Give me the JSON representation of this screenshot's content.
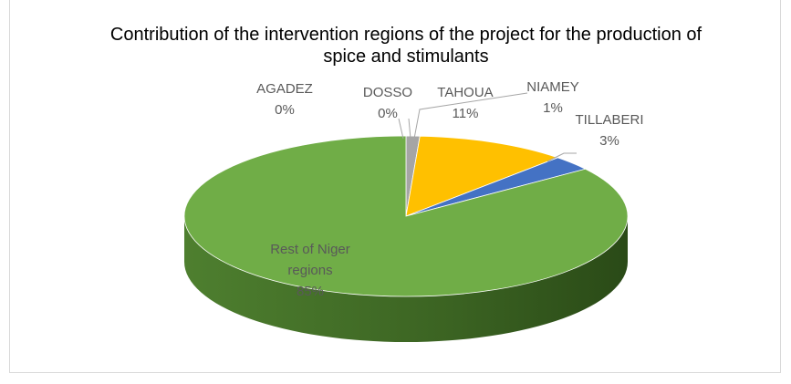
{
  "chart_data": {
    "type": "pie",
    "title": "Contribution of the intervention regions of the project for the production of  spice and stimulants",
    "categories": [
      "AGADEZ",
      "DOSSO",
      "NIAMEY",
      "TAHOUA",
      "TILLABERI",
      "Rest of Niger regions"
    ],
    "values": [
      0,
      0,
      1,
      11,
      3,
      85
    ],
    "value_labels": [
      "0%",
      "0%",
      "1%",
      "11%",
      "3%",
      "85%"
    ],
    "colors": [
      "#4472c4",
      "#ed7d31",
      "#a5a5a5",
      "#ffc000",
      "#4472c4",
      "#70ad47"
    ]
  }
}
